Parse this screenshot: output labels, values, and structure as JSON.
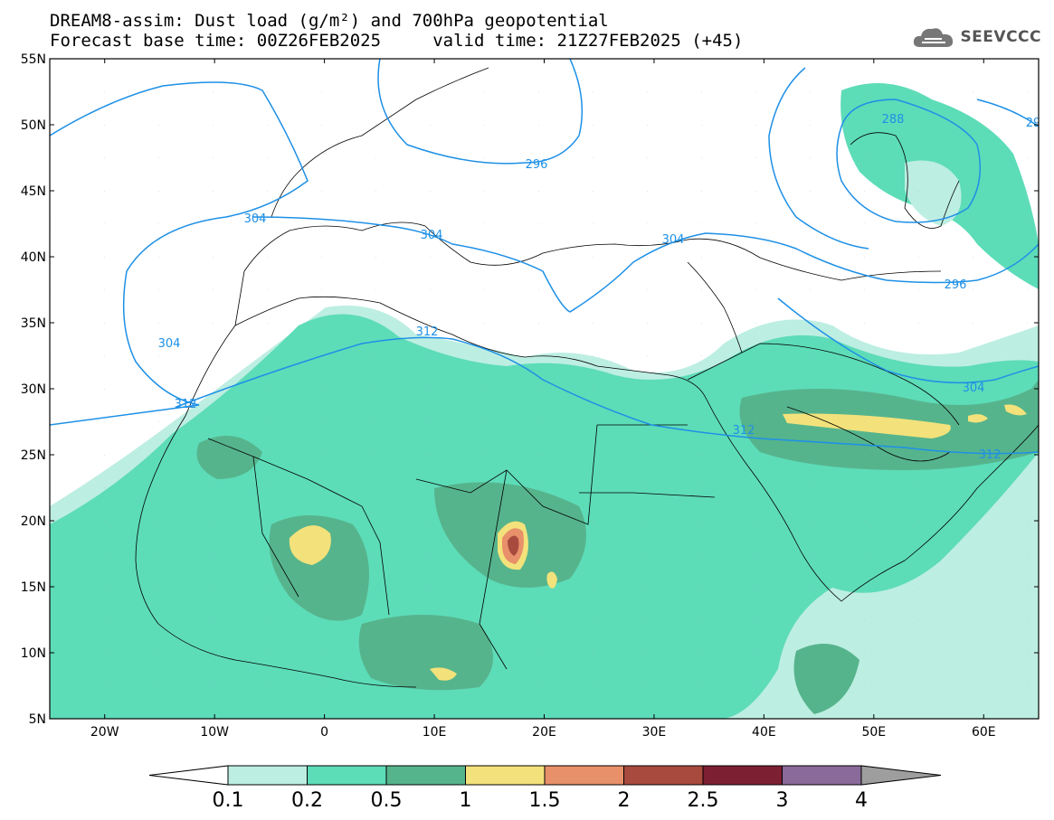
{
  "title": {
    "line1": "DREAM8-assim: Dust load (g/m²) and 700hPa geopotential",
    "line2": "Forecast base time: 00Z26FEB2025     valid time: 21Z27FEB2025 (+45)"
  },
  "logo": {
    "text": "SEEVCCC",
    "icon": "cloud-icon"
  },
  "map": {
    "lat_labels": [
      "55N",
      "50N",
      "45N",
      "40N",
      "35N",
      "30N",
      "25N",
      "20N",
      "15N",
      "10N",
      "5N"
    ],
    "lon_labels": [
      "20W",
      "10W",
      "0",
      "10E",
      "20E",
      "30E",
      "40E",
      "50E",
      "60E"
    ],
    "lat_range": [
      5,
      55
    ],
    "lon_range": [
      -25,
      65
    ]
  },
  "contours": {
    "labels": [
      "288",
      "296",
      "296",
      "304",
      "304",
      "304",
      "304",
      "304",
      "312",
      "312",
      "312",
      "312",
      "29"
    ]
  },
  "colorbar": {
    "labels": [
      "0.1",
      "0.2",
      "0.5",
      "1",
      "1.5",
      "2",
      "2.5",
      "3",
      "4"
    ],
    "colors": [
      "#bdeee2",
      "#5ddcb8",
      "#56b48c",
      "#f3e27b",
      "#e8906a",
      "#a94a3e",
      "#7d1f32",
      "#8a6a9a"
    ],
    "below_color": "#ffffff",
    "above_color": "#9e9e9e"
  },
  "colors": {
    "contour": "#1e90e6",
    "dust_1": "#bdeee2",
    "dust_2": "#5ddcb8",
    "dust_3": "#56b48c",
    "dust_4": "#f3e27b",
    "dust_5": "#e8906a",
    "dust_6": "#a94a3e"
  }
}
